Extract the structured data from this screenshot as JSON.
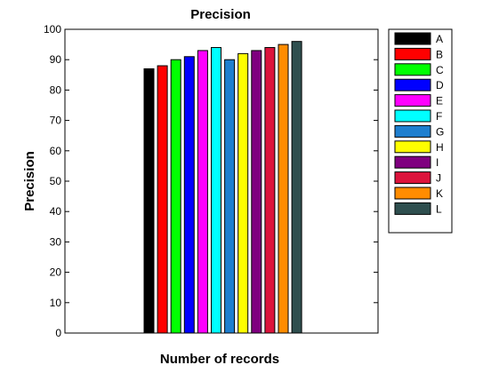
{
  "chart_data": {
    "type": "bar",
    "title": "Precision",
    "xlabel": "Number of records",
    "ylabel": "Precision",
    "ylim": [
      0,
      100
    ],
    "yticks": [
      0,
      10,
      20,
      30,
      40,
      50,
      60,
      70,
      80,
      90,
      100
    ],
    "categories": [
      ""
    ],
    "grid": false,
    "legend_position": "outside-right",
    "series": [
      {
        "name": "A",
        "values": [
          87
        ],
        "color": "#000000"
      },
      {
        "name": "B",
        "values": [
          88
        ],
        "color": "#ff0000"
      },
      {
        "name": "C",
        "values": [
          90
        ],
        "color": "#00ff00"
      },
      {
        "name": "D",
        "values": [
          91
        ],
        "color": "#0000ff"
      },
      {
        "name": "E",
        "values": [
          93
        ],
        "color": "#ff00ff"
      },
      {
        "name": "F",
        "values": [
          94
        ],
        "color": "#00ffff"
      },
      {
        "name": "G",
        "values": [
          90
        ],
        "color": "#1f7fcf"
      },
      {
        "name": "H",
        "values": [
          92
        ],
        "color": "#ffff00"
      },
      {
        "name": "I",
        "values": [
          93
        ],
        "color": "#7f007f"
      },
      {
        "name": "J",
        "values": [
          94
        ],
        "color": "#dc143c"
      },
      {
        "name": "K",
        "values": [
          95
        ],
        "color": "#ff8c00"
      },
      {
        "name": "L",
        "values": [
          96
        ],
        "color": "#2f4f4f"
      }
    ]
  }
}
